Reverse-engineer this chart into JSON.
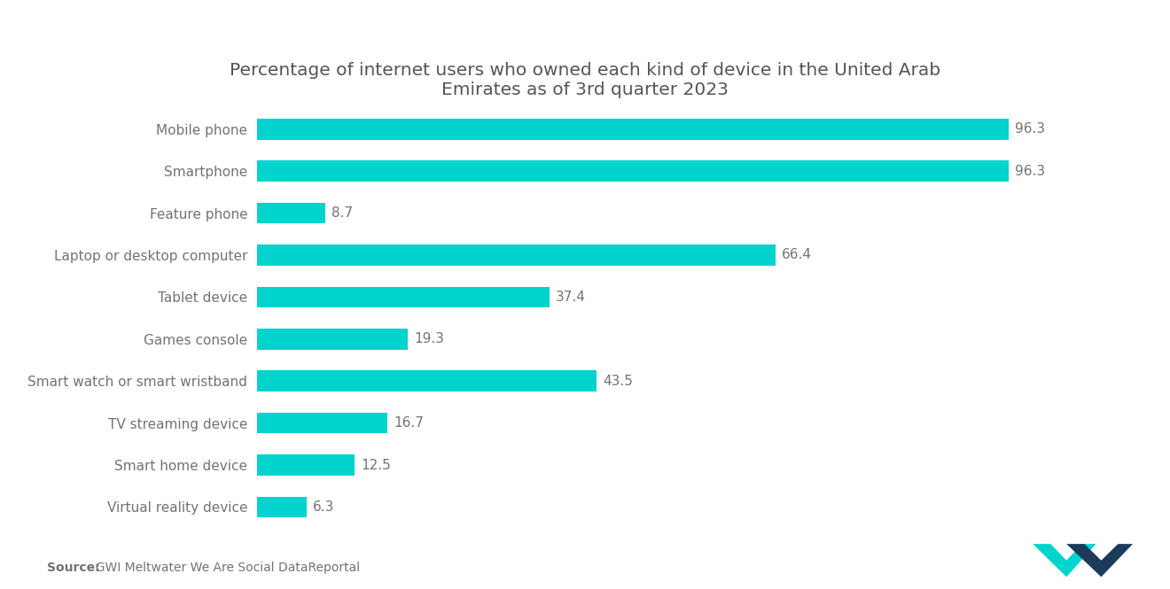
{
  "title": "Percentage of internet users who owned each kind of device in the United Arab\nEmirates as of 3rd quarter 2023",
  "categories": [
    "Virtual reality device",
    "Smart home device",
    "TV streaming device",
    "Smart watch or smart wristband",
    "Games console",
    "Tablet device",
    "Laptop or desktop computer",
    "Feature phone",
    "Smartphone",
    "Mobile phone"
  ],
  "values": [
    6.3,
    12.5,
    16.7,
    43.5,
    19.3,
    37.4,
    66.4,
    8.7,
    96.3,
    96.3
  ],
  "bar_color": "#00D4CC",
  "label_color": "#737373",
  "value_color": "#737373",
  "title_color": "#555555",
  "background_color": "#ffffff",
  "source_label_bold": "Source:",
  "source_text_rest": "  GWI Meltwater We Are Social DataReportal",
  "xlim": [
    0,
    108
  ],
  "title_fontsize": 14.5,
  "label_fontsize": 11,
  "value_fontsize": 11,
  "source_fontsize": 10,
  "bar_height": 0.5,
  "logo_teal": "#00D4CC",
  "logo_navy": "#1B3A5C"
}
